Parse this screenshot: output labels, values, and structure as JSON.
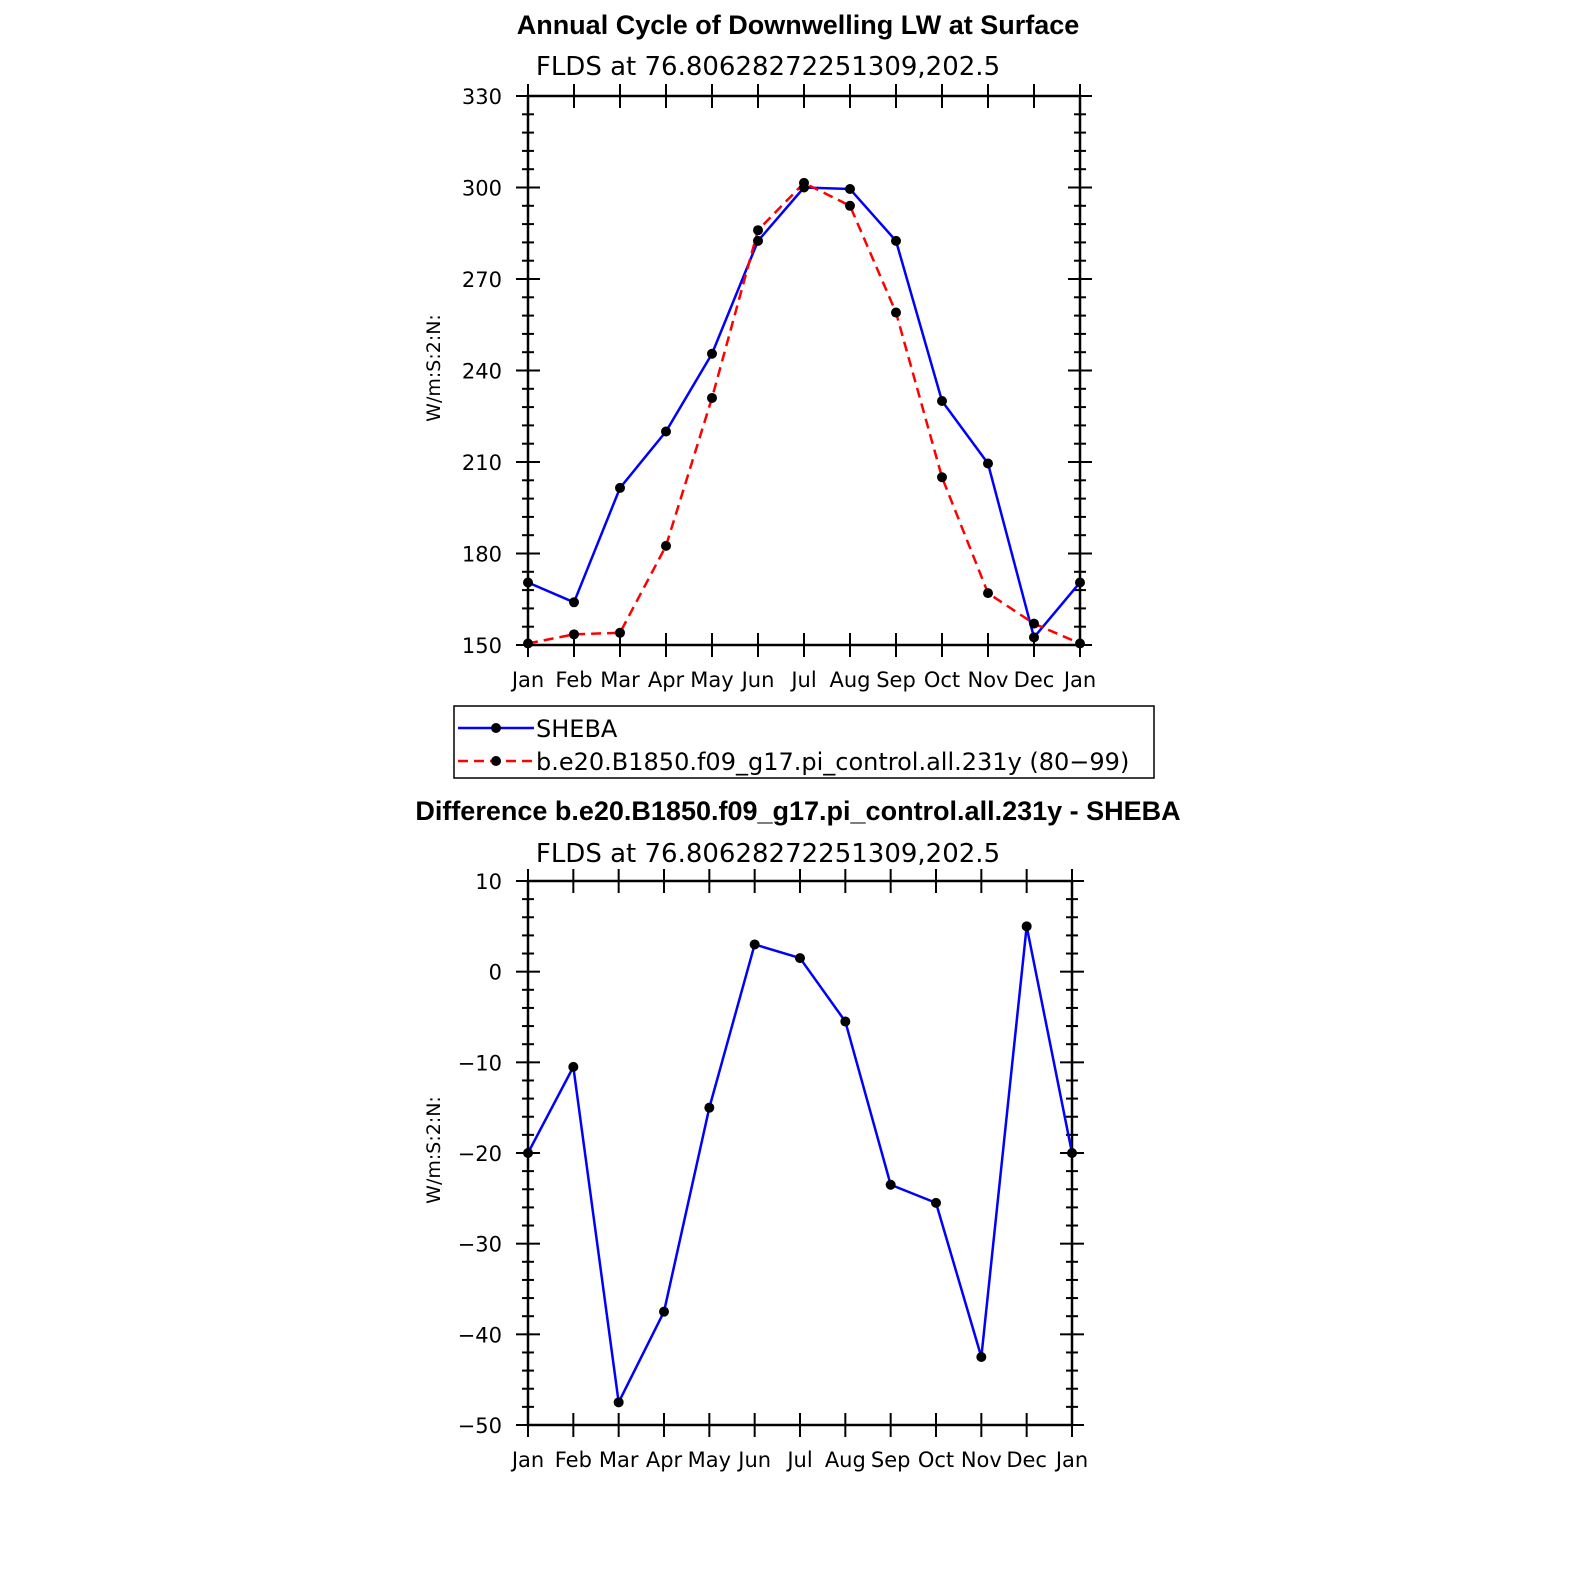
{
  "chart_data": [
    {
      "type": "line",
      "title": "Annual Cycle of Downwelling LW at Surface",
      "subtitle": "FLDS at 76.80628272251309,202.5",
      "ylabel": "W/m:S:2:N:",
      "xlabel": "",
      "categories": [
        "Jan",
        "Feb",
        "Mar",
        "Apr",
        "May",
        "Jun",
        "Jul",
        "Aug",
        "Sep",
        "Oct",
        "Nov",
        "Dec",
        "Jan"
      ],
      "yticks": [
        150,
        180,
        210,
        240,
        270,
        300,
        330
      ],
      "ylim": [
        150,
        330
      ],
      "grid": false,
      "legend_position": "below",
      "series": [
        {
          "name": "SHEBA",
          "color": "#0000ff",
          "dash": "solid",
          "values": [
            170.5,
            164.0,
            201.5,
            220.0,
            245.5,
            282.5,
            300.0,
            299.5,
            282.5,
            230.0,
            209.5,
            152.5,
            170.5
          ]
        },
        {
          "name": "b.e20.B1850.f09_g17.pi_control.all.231y (80−99)",
          "color": "#ff0000",
          "dash": "dashed",
          "values": [
            150.5,
            153.5,
            154.0,
            182.5,
            231.0,
            286.0,
            301.5,
            294.0,
            259.0,
            205.0,
            167.0,
            157.0,
            150.5
          ]
        }
      ]
    },
    {
      "type": "line",
      "title": "Difference b.e20.B1850.f09_g17.pi_control.all.231y - SHEBA",
      "subtitle": "FLDS at 76.80628272251309,202.5",
      "ylabel": "W/m:S:2:N:",
      "xlabel": "",
      "categories": [
        "Jan",
        "Feb",
        "Mar",
        "Apr",
        "May",
        "Jun",
        "Jul",
        "Aug",
        "Sep",
        "Oct",
        "Nov",
        "Dec",
        "Jan"
      ],
      "yticks": [
        -50,
        -40,
        -30,
        -20,
        -10,
        0,
        10
      ],
      "ytick_labels": [
        "−50",
        "−40",
        "−30",
        "−20",
        "−10",
        "0",
        "10"
      ],
      "ylim": [
        -50,
        10
      ],
      "grid": false,
      "series": [
        {
          "color": "#0000ff",
          "dash": "solid",
          "values": [
            -20.0,
            -10.5,
            -47.5,
            -37.5,
            -15.0,
            3.0,
            1.5,
            -5.5,
            -23.5,
            -25.5,
            -42.5,
            5.0,
            -20.0
          ]
        }
      ]
    }
  ]
}
